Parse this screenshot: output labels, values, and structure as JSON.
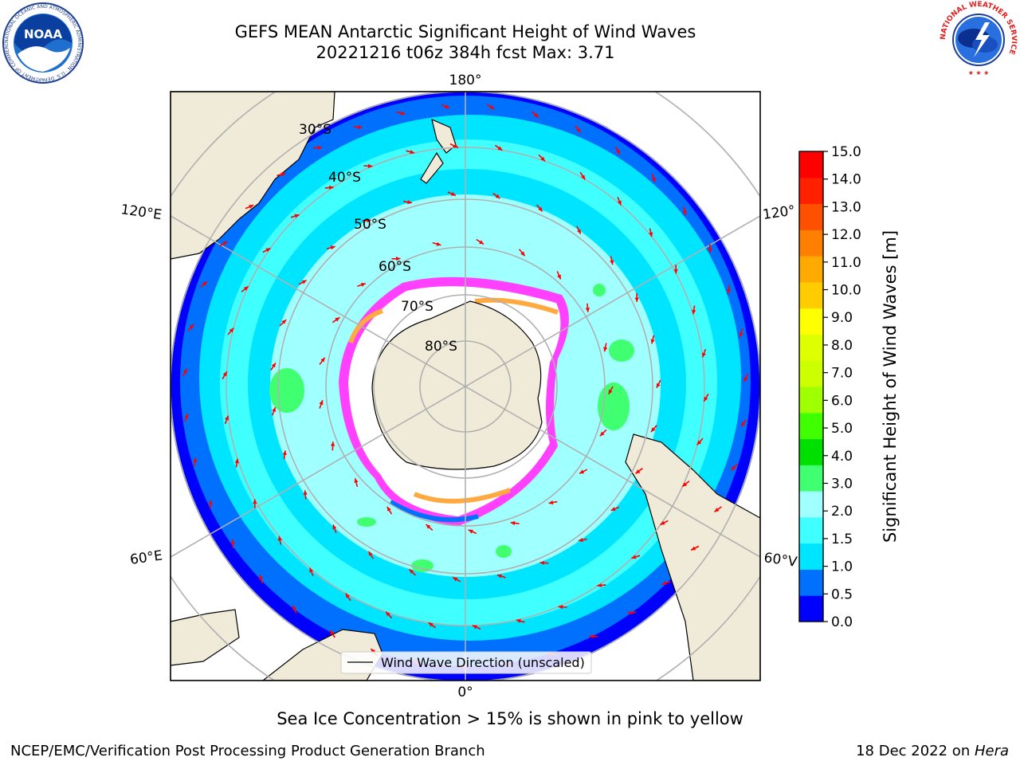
{
  "header": {
    "title_line1": "GEFS MEAN Antarctic Significant Height of Wind Waves",
    "title_line2": "20221216 t06z 384h fcst   Max: 3.71"
  },
  "logos": {
    "left": {
      "icon": "noaa-logo",
      "text": "NOAA",
      "ring_text": "NATIONAL OCEANIC AND ATMOSPHERIC ADMINISTRATION · U.S. DEPARTMENT OF COMMERCE"
    },
    "right": {
      "icon": "national-weather-service-logo",
      "ring_text": "NATIONAL WEATHER SERVICE"
    }
  },
  "map": {
    "projection": "south polar stereographic",
    "meridian_labels": {
      "top": "180°",
      "bottom": "0°",
      "upper_left": "120°E",
      "lower_left": "60°E",
      "upper_right": "120°",
      "lower_right": "60°V"
    },
    "latitude_labels": [
      "30°S",
      "40°S",
      "50°S",
      "60°S",
      "70°S",
      "80°S"
    ],
    "legend_label": "Wind Wave Direction (unscaled)",
    "colors": {
      "land": "#efebd8",
      "sea_ice_no_data": "#ffffff",
      "arrow": "#ff0000",
      "grid": "#b0b0b0"
    }
  },
  "colorbar": {
    "label": "Significant Height of Wind Waves [m]",
    "ticks": [
      "15.0",
      "14.0",
      "13.0",
      "12.0",
      "11.0",
      "10.0",
      "9.0",
      "8.0",
      "7.0",
      "6.0",
      "5.0",
      "4.0",
      "3.0",
      "2.0",
      "1.5",
      "1.0",
      "0.5",
      "0.0"
    ],
    "colors_bottom_to_top": [
      "#0000ff",
      "#0070ff",
      "#00e5ff",
      "#40ffff",
      "#a0ffff",
      "#40ff70",
      "#00e000",
      "#40ff00",
      "#a0ff00",
      "#ccff00",
      "#ddff00",
      "#ffff00",
      "#ffcc00",
      "#ffaa00",
      "#ff8000",
      "#ff5000",
      "#ff2000",
      "#ff0000"
    ]
  },
  "footer": {
    "note": "Sea Ice Concentration > 15% is shown in pink to yellow",
    "credit": "NCEP/EMC/Verification Post Processing Product Generation Branch",
    "date": "18 Dec 2022 on ",
    "host": "Hera"
  }
}
